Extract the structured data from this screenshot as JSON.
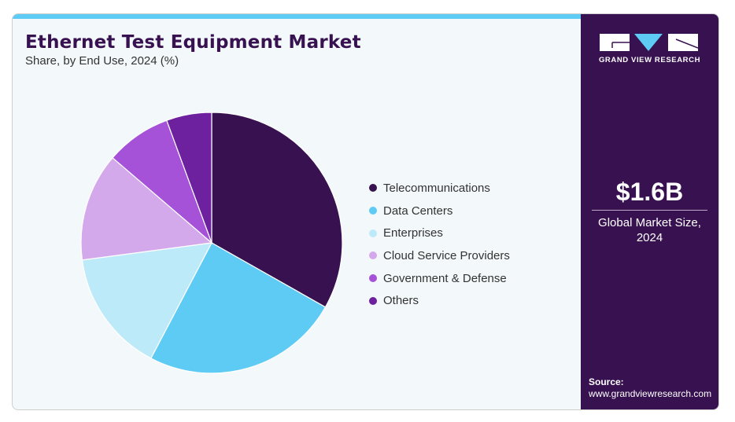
{
  "header": {
    "title": "Ethernet Test Equipment Market",
    "subtitle": "Share, by End Use, 2024 (%)"
  },
  "brand": {
    "name": "GRAND VIEW RESEARCH",
    "colors": {
      "primary": "#381250",
      "accent": "#5ecbf5"
    }
  },
  "highlight": {
    "value": "$1.6B",
    "label_line1": "Global Market Size,",
    "label_line2": "2024"
  },
  "source": {
    "heading": "Source:",
    "url": "www.grandviewresearch.com"
  },
  "chart_data": {
    "type": "pie",
    "title": "Ethernet Test Equipment Market",
    "subtitle": "Share, by End Use, 2024 (%)",
    "legend_position": "right",
    "start": "12 o'clock, clockwise",
    "slices": [
      {
        "label": "Telecommunications",
        "value": 33.2,
        "color": "#381250"
      },
      {
        "label": "Data Centers",
        "value": 24.5,
        "color": "#5ecbf5"
      },
      {
        "label": "Enterprises",
        "value": 15.2,
        "color": "#bdeaf9"
      },
      {
        "label": "Cloud Service Providers",
        "value": 13.4,
        "color": "#d4a9ec"
      },
      {
        "label": "Government & Defense",
        "value": 8.1,
        "color": "#a552d8"
      },
      {
        "label": "Others",
        "value": 5.6,
        "color": "#6e219e"
      }
    ]
  }
}
